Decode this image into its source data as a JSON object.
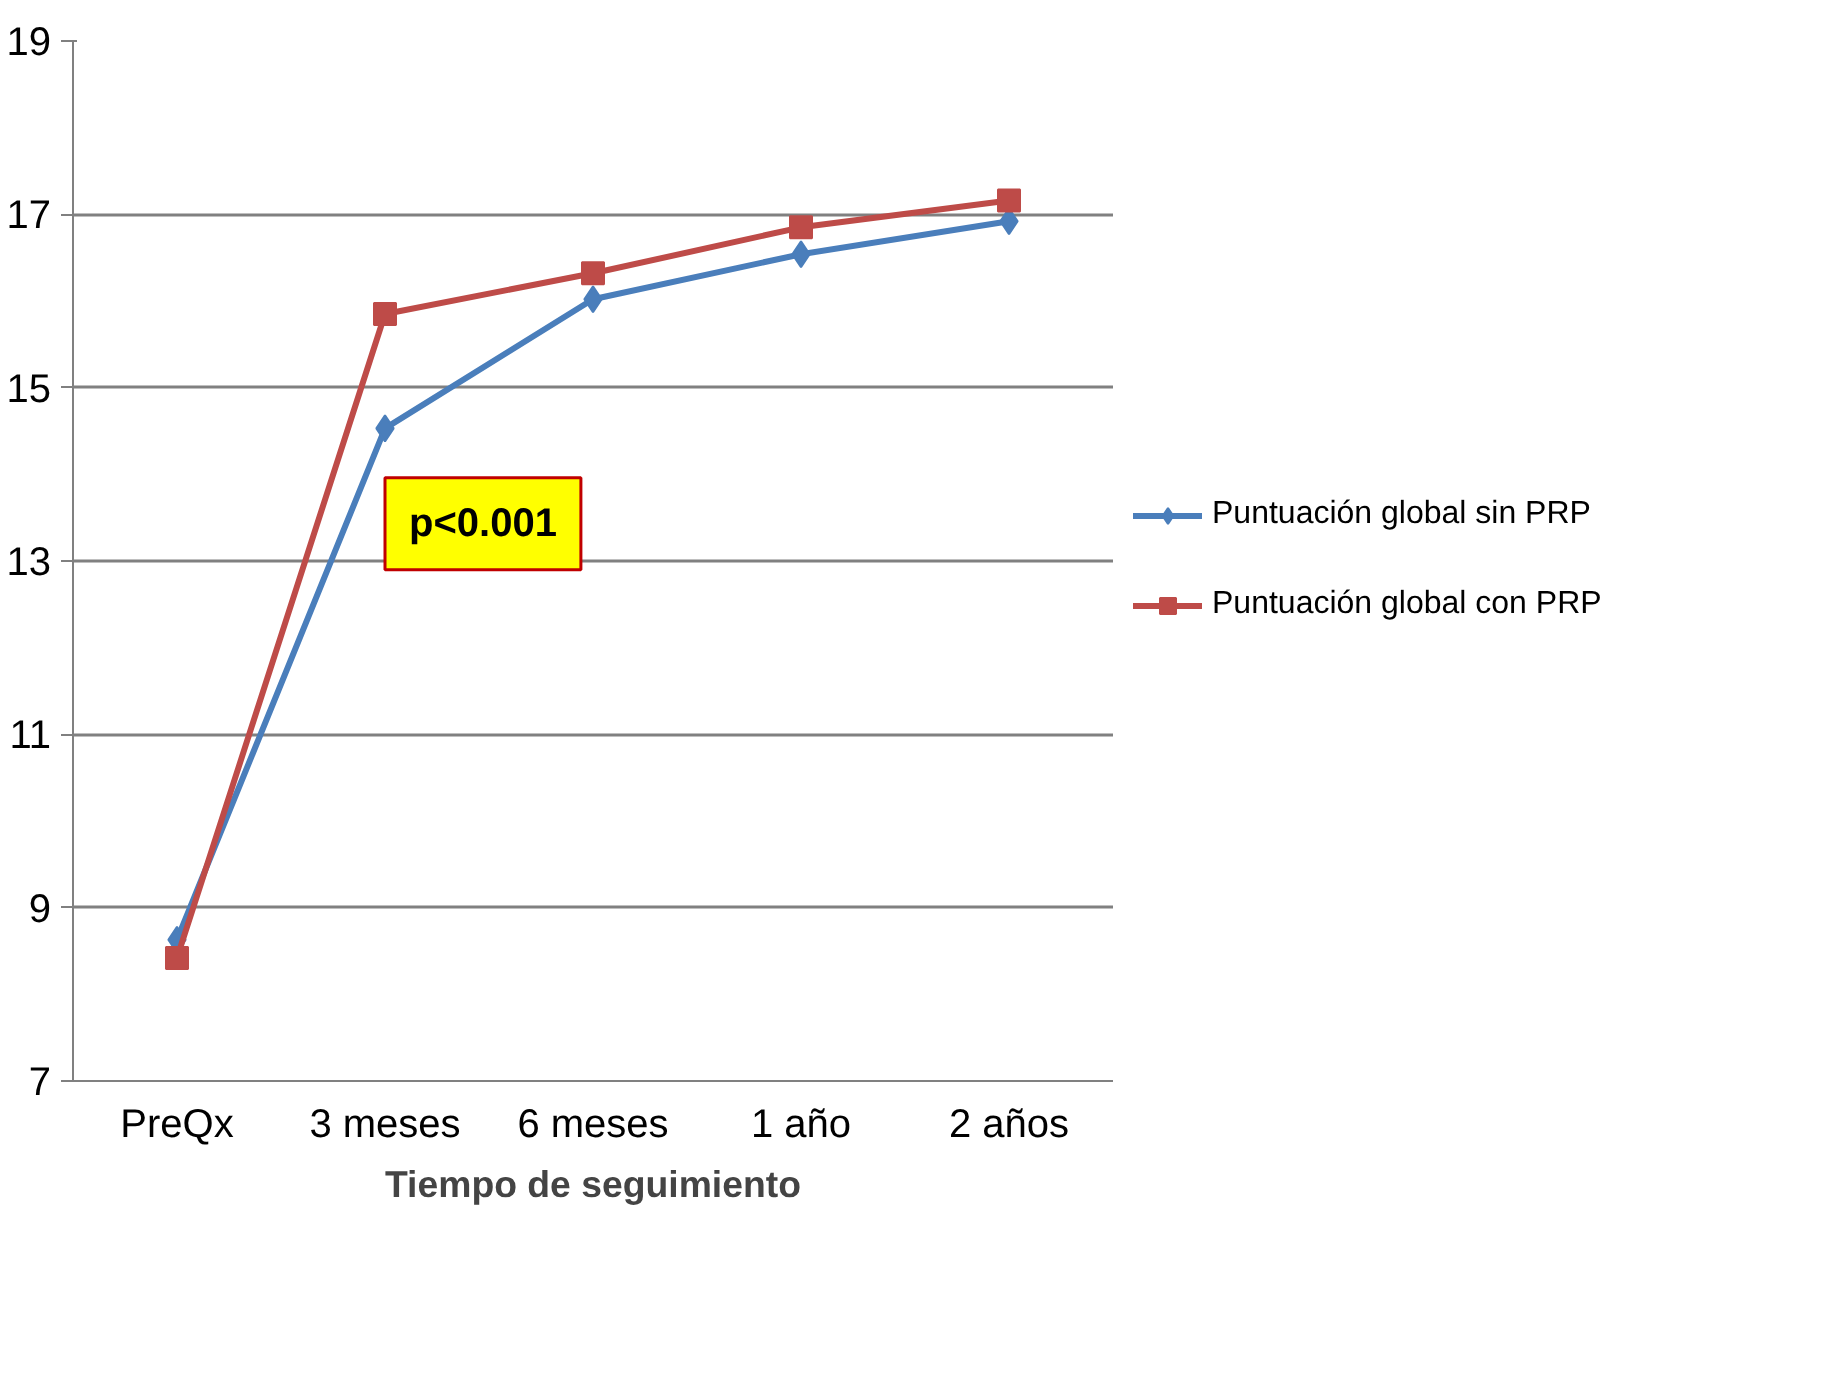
{
  "chart_data": {
    "type": "line",
    "xlabel": "Tiempo de seguimiento",
    "categories": [
      "PreQx",
      "3 meses",
      "6 meses",
      "1 año",
      "2 años"
    ],
    "series": [
      {
        "name": "Puntuación global sin PRP",
        "color": "#4a7ebb",
        "marker": "diamond",
        "values": [
          8.63,
          14.53,
          16.02,
          16.54,
          16.92
        ]
      },
      {
        "name": "Puntuación global con PRP",
        "color": "#be4b48",
        "marker": "square",
        "values": [
          8.42,
          15.85,
          16.32,
          16.85,
          17.16
        ]
      }
    ],
    "ylim": [
      7,
      19
    ],
    "yticks": [
      7,
      9,
      11,
      13,
      15,
      17,
      19
    ],
    "grid": "y",
    "legend": "right",
    "line_style": "solid",
    "annotations": [
      "p<0.001"
    ]
  }
}
